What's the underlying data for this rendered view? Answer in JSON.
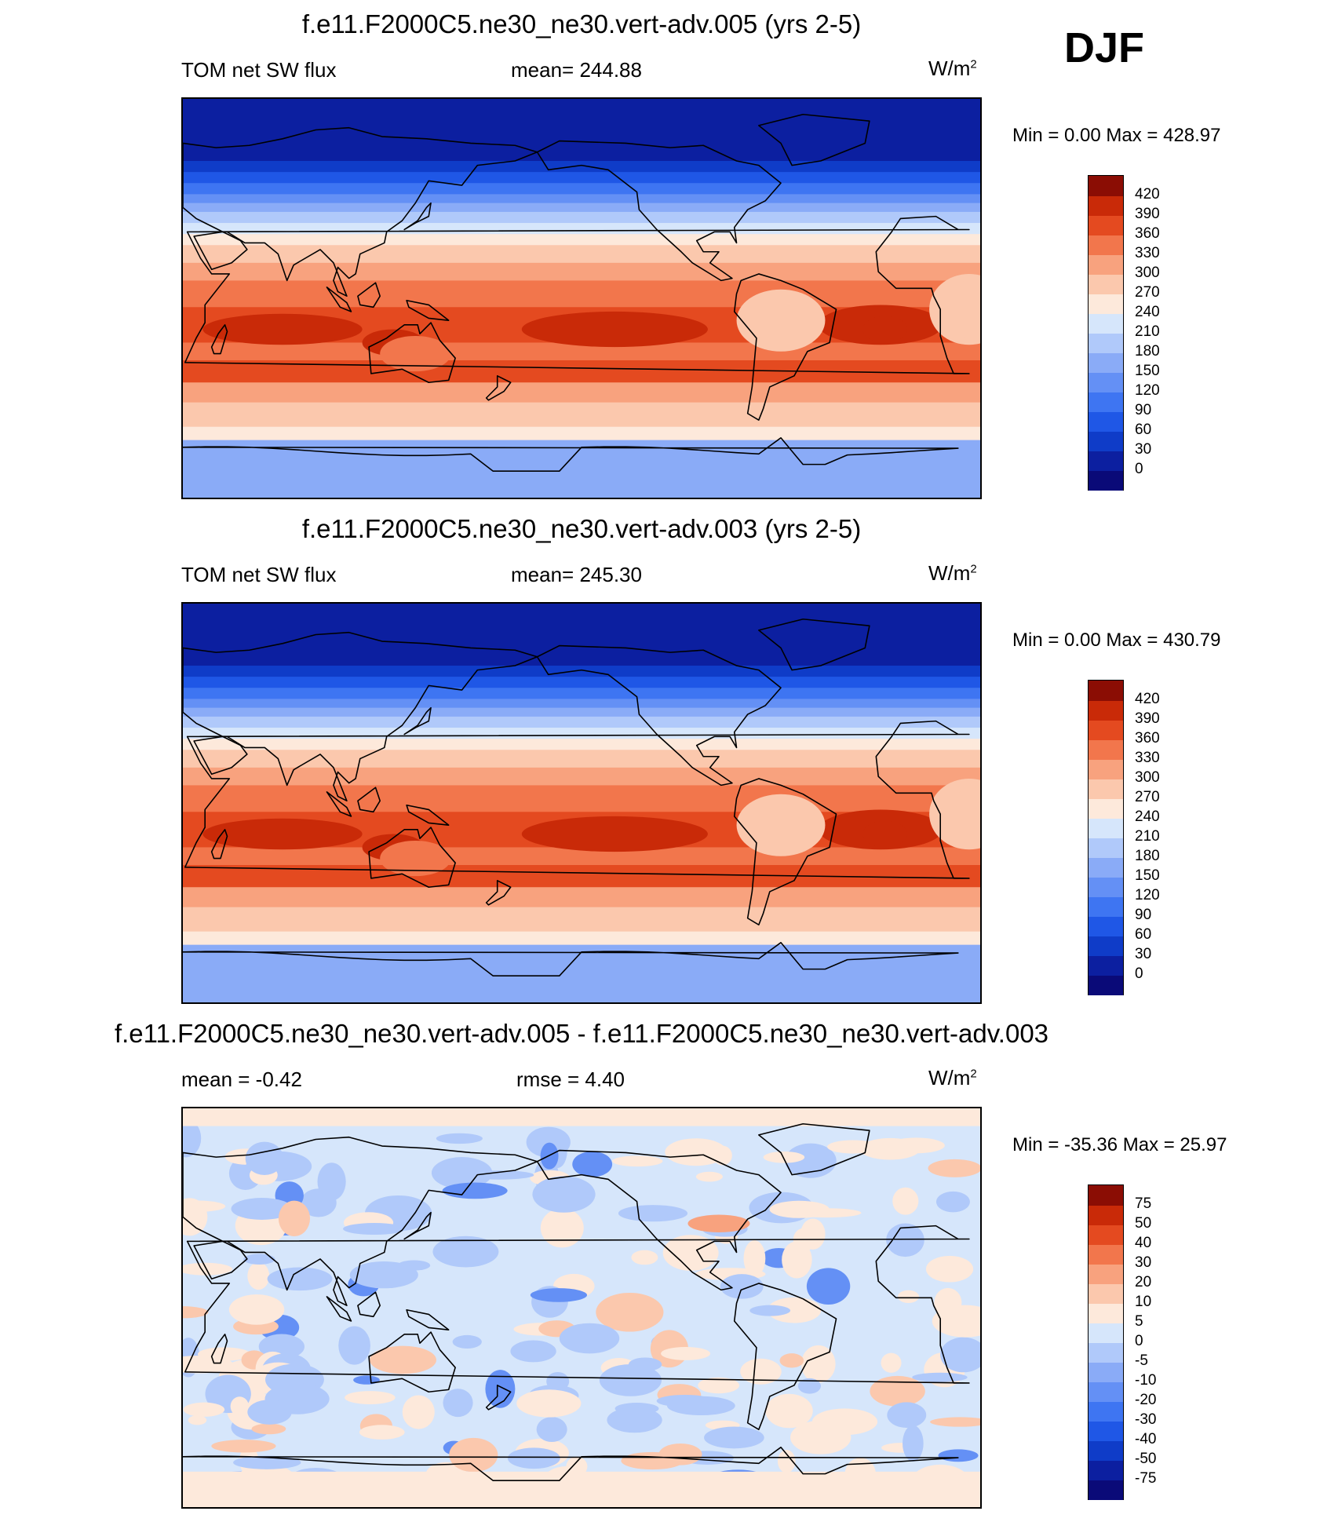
{
  "season": "DJF",
  "panels": [
    {
      "title": "f.e11.F2000C5.ne30_ne30.vert-adv.005 (yrs 2-5)",
      "left_label": "TOM net SW flux",
      "center_label": "mean= 244.88",
      "unit_base": "W/m",
      "unit_sup": "2",
      "minmax": "Min =    0.00 Max = 428.97"
    },
    {
      "title": "f.e11.F2000C5.ne30_ne30.vert-adv.003 (yrs 2-5)",
      "left_label": "TOM net SW flux",
      "center_label": "mean= 245.30",
      "unit_base": "W/m",
      "unit_sup": "2",
      "minmax": "Min =    0.00 Max = 430.79"
    },
    {
      "title": "f.e11.F2000C5.ne30_ne30.vert-adv.005 - f.e11.F2000C5.ne30_ne30.vert-adv.003",
      "left_label": "mean =  -0.42",
      "center_label": "rmse =   4.40",
      "unit_base": "W/m",
      "unit_sup": "2",
      "minmax": "Min = -35.36 Max =  25.97"
    }
  ],
  "chart_data": [
    {
      "type": "heatmap",
      "title": "f.e11.F2000C5.ne30_ne30.vert-adv.005 (yrs 2-5)",
      "variable": "TOM net SW flux",
      "units": "W/m2",
      "mean": 244.88,
      "min": 0.0,
      "max": 428.97,
      "colorbar_levels": [
        0,
        30,
        60,
        90,
        120,
        150,
        180,
        210,
        240,
        270,
        300,
        330,
        360,
        390,
        420
      ],
      "colorbar_colors": [
        "#0a0a78",
        "#0c1fa0",
        "#0f3cc8",
        "#1f57e6",
        "#3e75f2",
        "#6490f5",
        "#8aabf7",
        "#b0c9fa",
        "#d6e6fb",
        "#fde9db",
        "#fbc8ad",
        "#f8a27e",
        "#f2764c",
        "#e44a20",
        "#c92a08",
        "#8b0d04"
      ]
    },
    {
      "type": "heatmap",
      "title": "f.e11.F2000C5.ne30_ne30.vert-adv.003 (yrs 2-5)",
      "variable": "TOM net SW flux",
      "units": "W/m2",
      "mean": 245.3,
      "min": 0.0,
      "max": 430.79,
      "colorbar_levels": [
        0,
        30,
        60,
        90,
        120,
        150,
        180,
        210,
        240,
        270,
        300,
        330,
        360,
        390,
        420
      ],
      "colorbar_colors": [
        "#0a0a78",
        "#0c1fa0",
        "#0f3cc8",
        "#1f57e6",
        "#3e75f2",
        "#6490f5",
        "#8aabf7",
        "#b0c9fa",
        "#d6e6fb",
        "#fde9db",
        "#fbc8ad",
        "#f8a27e",
        "#f2764c",
        "#e44a20",
        "#c92a08",
        "#8b0d04"
      ]
    },
    {
      "type": "heatmap",
      "title": "f.e11.F2000C5.ne30_ne30.vert-adv.005 - f.e11.F2000C5.ne30_ne30.vert-adv.003",
      "units": "W/m2",
      "mean": -0.42,
      "rmse": 4.4,
      "min": -35.36,
      "max": 25.97,
      "colorbar_levels": [
        -75,
        -50,
        -40,
        -30,
        -20,
        -10,
        -5,
        0,
        5,
        10,
        20,
        30,
        40,
        50,
        75
      ],
      "colorbar_colors": [
        "#0a0a78",
        "#0c1fa0",
        "#0f3cc8",
        "#1f57e6",
        "#3e75f2",
        "#6490f5",
        "#8aabf7",
        "#b0c9fa",
        "#d6e6fb",
        "#fde9db",
        "#fbc8ad",
        "#f8a27e",
        "#f2764c",
        "#e44a20",
        "#c92a08",
        "#8b0d04"
      ]
    }
  ]
}
